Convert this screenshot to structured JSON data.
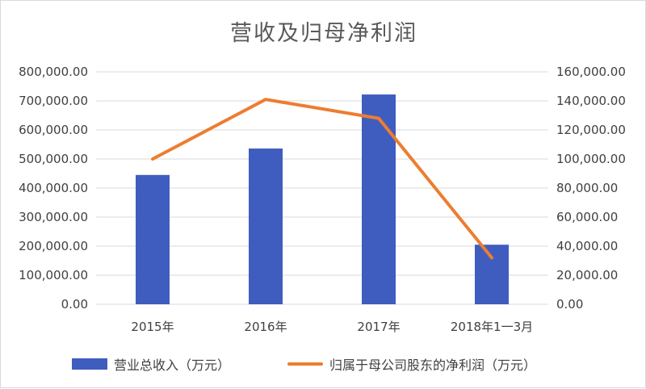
{
  "chart_data": {
    "type": "bar+line",
    "title": "营收及归母净利润",
    "categories": [
      "2015年",
      "2016年",
      "2017年",
      "2018年1一3月"
    ],
    "series": [
      {
        "name": "营业总收入（万元）",
        "type": "bar",
        "axis": "left",
        "color": "#3f5dbf",
        "values": [
          445000,
          536000,
          722000,
          205000
        ]
      },
      {
        "name": "归属于母公司股东的净利润（万元）",
        "type": "line",
        "axis": "right",
        "color": "#ed7d31",
        "values": [
          100000,
          141000,
          128000,
          32000
        ]
      }
    ],
    "y_left": {
      "ylim": [
        0,
        800000
      ],
      "ticks": [
        "0.00",
        "100,000.00",
        "200,000.00",
        "300,000.00",
        "400,000.00",
        "500,000.00",
        "600,000.00",
        "700,000.00",
        "800,000.00"
      ]
    },
    "y_right": {
      "ylim": [
        0,
        160000
      ],
      "ticks": [
        "0.00",
        "20,000.00",
        "40,000.00",
        "60,000.00",
        "80,000.00",
        "100,000.00",
        "120,000.00",
        "140,000.00",
        "160,000.00"
      ]
    },
    "grid": true,
    "legend_position": "bottom"
  }
}
